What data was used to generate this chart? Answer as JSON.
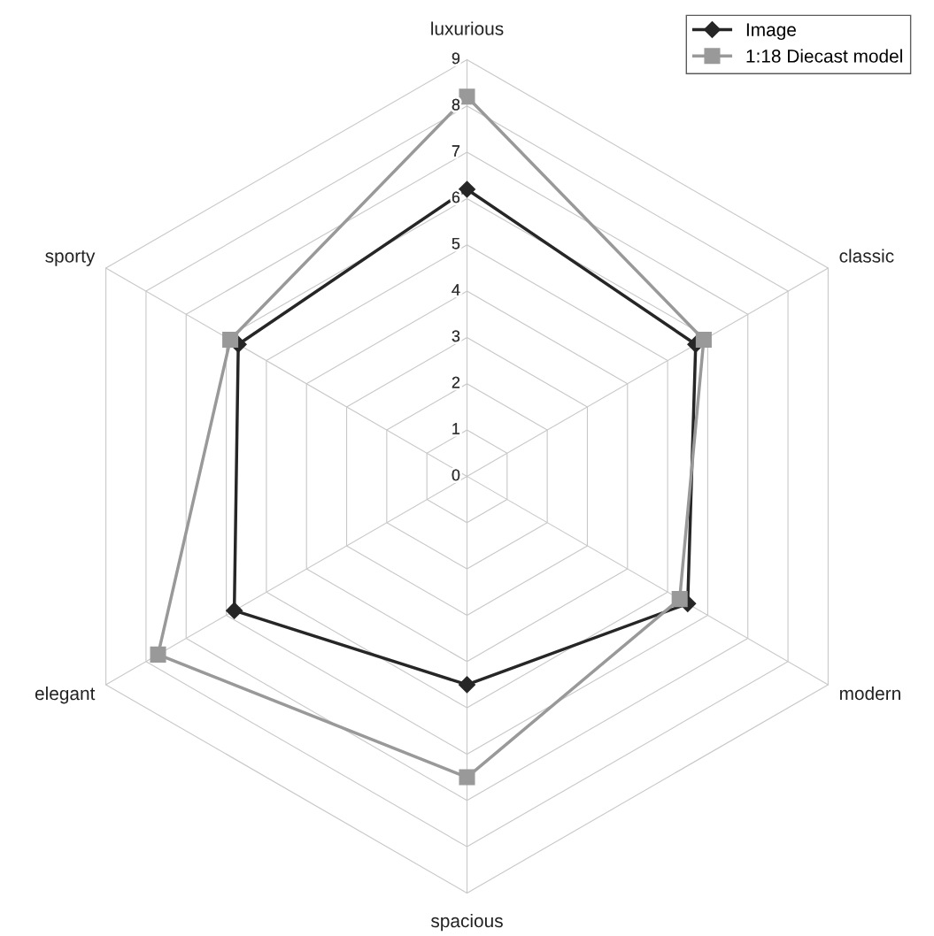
{
  "chart_data": {
    "type": "radar",
    "categories": [
      "luxurious",
      "classic",
      "modern",
      "spacious",
      "elegant",
      "sporty"
    ],
    "ylim": [
      0,
      9
    ],
    "yticks": [
      0,
      1,
      2,
      3,
      4,
      5,
      6,
      7,
      8,
      9
    ],
    "grid": true,
    "legend": "top right",
    "line_style": "solid",
    "series": [
      {
        "name": "Image",
        "color": "#262626",
        "marker": "diamond",
        "values": [
          6.2,
          5.7,
          5.5,
          4.5,
          5.8,
          5.7
        ]
      },
      {
        "name": "1:18 Diecast model",
        "color": "#999999",
        "marker": "square",
        "values": [
          8.2,
          5.9,
          5.3,
          6.5,
          7.7,
          5.9
        ]
      }
    ]
  }
}
